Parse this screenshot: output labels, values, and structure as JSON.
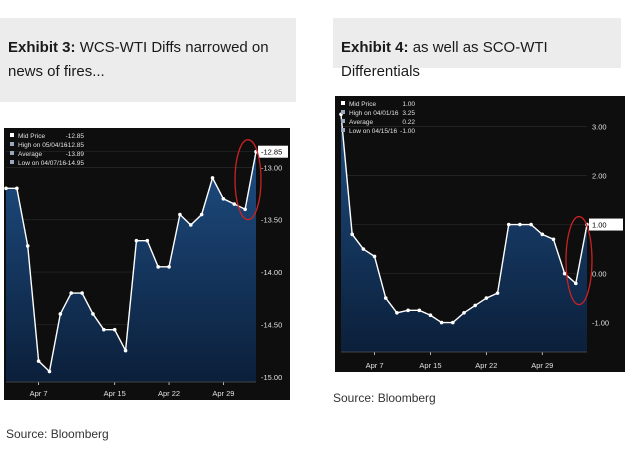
{
  "exhibits": [
    {
      "label": "Exhibit 3:",
      "title": "WCS-WTI Diffs narrowed on news of fires...",
      "source": "Source: Bloomberg"
    },
    {
      "label": "Exhibit 4:",
      "title": "as well as SCO-WTI Differentials",
      "source": "Source: Bloomberg"
    }
  ],
  "colors": {
    "background": "#0e0e0e",
    "area_top": "#1e4d82",
    "area_bottom": "#0b1f3a",
    "line": "#ffffff",
    "highlight_circle": "#cc2222",
    "text": "#e0e0e0",
    "last_value_box": "#ffffff"
  },
  "chart_data": [
    {
      "type": "area",
      "x_ticks": [
        "Apr 7",
        "Apr 15",
        "Apr 22",
        "Apr 29"
      ],
      "x_tick_index": [
        3,
        10,
        15,
        20
      ],
      "y_ticks": [
        "-12.85",
        "-13.00",
        "-13.50",
        "-14.00",
        "-14.50",
        "-15.00"
      ],
      "ylim": [
        -15.05,
        -12.7
      ],
      "last_value_label": "-12.85",
      "legend": [
        {
          "label": "Mid Price",
          "value": "-12.85"
        },
        {
          "label": "High on 05/04/16",
          "value": "-12.85"
        },
        {
          "label": "Average",
          "value": "-13.89"
        },
        {
          "label": "Low on 04/07/16",
          "value": "-14.95"
        }
      ],
      "values": [
        -13.2,
        -13.2,
        -13.75,
        -14.85,
        -14.95,
        -14.4,
        -14.2,
        -14.2,
        -14.4,
        -14.55,
        -14.55,
        -14.75,
        -13.7,
        -13.7,
        -13.95,
        -13.95,
        -13.45,
        -13.55,
        -13.45,
        -13.1,
        -13.3,
        -13.35,
        -13.4,
        -12.85
      ]
    },
    {
      "type": "area",
      "x_ticks": [
        "Apr 7",
        "Apr 15",
        "Apr 22",
        "Apr 29"
      ],
      "x_tick_index": [
        3,
        8,
        13,
        18
      ],
      "y_ticks": [
        "3.00",
        "2.00",
        "1.00",
        "0.00",
        "-1.00"
      ],
      "ylim": [
        -1.6,
        3.5
      ],
      "last_value_label": "1.00",
      "legend": [
        {
          "label": "Mid Price",
          "value": "1.00"
        },
        {
          "label": "High on 04/01/16",
          "value": "3.25"
        },
        {
          "label": "Average",
          "value": "0.22"
        },
        {
          "label": "Low on 04/15/16",
          "value": "-1.00"
        }
      ],
      "values": [
        3.25,
        0.8,
        0.5,
        0.35,
        -0.5,
        -0.8,
        -0.75,
        -0.75,
        -0.85,
        -1.0,
        -1.0,
        -0.8,
        -0.65,
        -0.5,
        -0.4,
        1.0,
        1.0,
        1.0,
        0.8,
        0.7,
        0.0,
        -0.2,
        1.0
      ]
    }
  ]
}
